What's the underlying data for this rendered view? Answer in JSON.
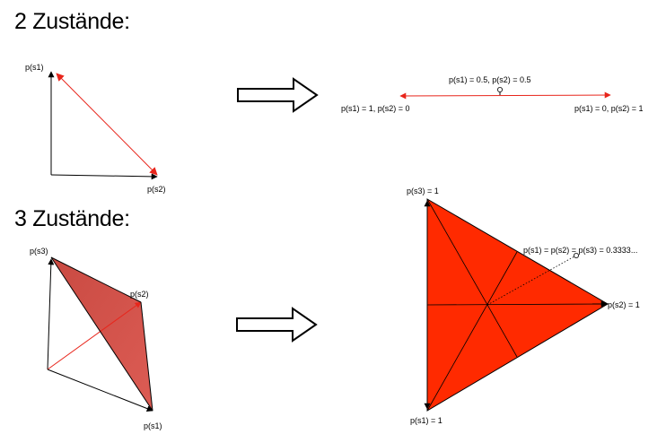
{
  "sections": [
    {
      "heading": "2 Zustände:",
      "simplex_2d": {
        "axis_labels": {
          "p_s1": "p(s1)",
          "p_s2": "p(s2)"
        }
      },
      "line_segment": {
        "center_label": "p(s1) = 0.5, p(s2) = 0.5",
        "left_label": "p(s1) = 1, p(s2) = 0",
        "right_label": "p(s1) = 0, p(s2) = 1"
      }
    },
    {
      "heading": "3 Zustände:",
      "simplex_3d": {
        "axis_labels": {
          "p_s3": "p(s3)",
          "p_s2": "p(s2)",
          "p_s1": "p(s1)"
        }
      },
      "triangle": {
        "top_label": "p(s3) = 1",
        "right_label": "p(s2) = 1",
        "bottom_label": "p(s1) = 1",
        "center_label": "p(s1) = p(s2) = p(s3) = 0.3333..."
      }
    }
  ],
  "colors": {
    "red_line": "#e8251b",
    "triangle_fill": "#ff2a00",
    "simplex_fill": "#d6564e"
  }
}
